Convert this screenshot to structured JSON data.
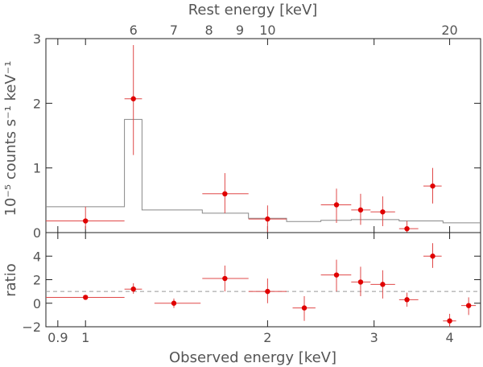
{
  "chart_data": {
    "type": "scatter",
    "x_scale": "log",
    "xlim": [
      0.86,
      4.5
    ],
    "xlabel": "Observed energy [keV]",
    "x_ticks": [
      {
        "value": 0.9,
        "label": "0.9"
      },
      {
        "value": 1,
        "label": "1"
      },
      {
        "value": 2,
        "label": "2"
      },
      {
        "value": 3,
        "label": "3"
      },
      {
        "value": 4,
        "label": "4"
      }
    ],
    "top_axis": {
      "label": "Rest energy [keV]",
      "x_ticks": [
        {
          "value": 1.2,
          "label": "6"
        },
        {
          "value": 1.4,
          "label": "7"
        },
        {
          "value": 1.6,
          "label": "8"
        },
        {
          "value": 1.8,
          "label": "9"
        },
        {
          "value": 2.0,
          "label": "10"
        },
        {
          "value": 4.0,
          "label": "20"
        }
      ]
    },
    "panels": [
      {
        "name": "spectrum",
        "ylabel": "10⁻⁵ counts s⁻¹ keV⁻¹",
        "ylim": [
          0,
          3
        ],
        "y_ticks": [
          {
            "value": 0,
            "label": "0"
          },
          {
            "value": 1,
            "label": "1"
          },
          {
            "value": 2,
            "label": "2"
          },
          {
            "value": 3,
            "label": "3"
          }
        ],
        "points": [
          {
            "x": 1.0,
            "xlo": 0.86,
            "xhi": 1.16,
            "y": 0.18,
            "ylo": 0.05,
            "yhi": 0.4
          },
          {
            "x": 1.2,
            "xlo": 1.16,
            "xhi": 1.24,
            "y": 2.07,
            "ylo": 1.2,
            "yhi": 2.9
          },
          {
            "x": 1.7,
            "xlo": 1.56,
            "xhi": 1.86,
            "y": 0.6,
            "ylo": 0.3,
            "yhi": 0.92
          },
          {
            "x": 2.0,
            "xlo": 1.86,
            "xhi": 2.15,
            "y": 0.21,
            "ylo": 0.0,
            "yhi": 0.42
          },
          {
            "x": 2.6,
            "xlo": 2.45,
            "xhi": 2.75,
            "y": 0.43,
            "ylo": 0.15,
            "yhi": 0.68
          },
          {
            "x": 2.85,
            "xlo": 2.75,
            "xhi": 2.96,
            "y": 0.35,
            "ylo": 0.12,
            "yhi": 0.6
          },
          {
            "x": 3.1,
            "xlo": 2.96,
            "xhi": 3.25,
            "y": 0.32,
            "ylo": 0.1,
            "yhi": 0.56
          },
          {
            "x": 3.4,
            "xlo": 3.3,
            "xhi": 3.55,
            "y": 0.06,
            "ylo": 0.0,
            "yhi": 0.18
          },
          {
            "x": 3.75,
            "xlo": 3.62,
            "xhi": 3.88,
            "y": 0.72,
            "ylo": 0.45,
            "yhi": 1.0
          }
        ],
        "model_steps": [
          {
            "x0": 0.86,
            "x1": 1.16,
            "y": 0.4
          },
          {
            "x0": 1.16,
            "x1": 1.24,
            "y": 1.75
          },
          {
            "x0": 1.24,
            "x1": 1.56,
            "y": 0.35
          },
          {
            "x0": 1.56,
            "x1": 1.86,
            "y": 0.3
          },
          {
            "x0": 1.86,
            "x1": 2.15,
            "y": 0.22
          },
          {
            "x0": 2.15,
            "x1": 2.45,
            "y": 0.17
          },
          {
            "x0": 2.45,
            "x1": 2.75,
            "y": 0.19
          },
          {
            "x0": 2.75,
            "x1": 3.3,
            "y": 0.2
          },
          {
            "x0": 3.3,
            "x1": 3.9,
            "y": 0.18
          },
          {
            "x0": 3.9,
            "x1": 4.5,
            "y": 0.15
          }
        ]
      },
      {
        "name": "ratio",
        "ylabel": "ratio",
        "ylim": [
          -2,
          6
        ],
        "reference_line": 1,
        "y_ticks": [
          {
            "value": -2,
            "label": "−2"
          },
          {
            "value": 0,
            "label": "0"
          },
          {
            "value": 2,
            "label": "2"
          },
          {
            "value": 4,
            "label": "4"
          }
        ],
        "points": [
          {
            "x": 1.0,
            "xlo": 0.86,
            "xhi": 1.16,
            "y": 0.5,
            "ylo": 0.5,
            "yhi": 0.5
          },
          {
            "x": 1.2,
            "xlo": 1.16,
            "xhi": 1.24,
            "y": 1.2,
            "ylo": 0.8,
            "yhi": 1.7
          },
          {
            "x": 1.4,
            "xlo": 1.3,
            "xhi": 1.55,
            "y": 0.0,
            "ylo": -0.4,
            "yhi": 0.4
          },
          {
            "x": 1.7,
            "xlo": 1.56,
            "xhi": 1.86,
            "y": 2.1,
            "ylo": 1.0,
            "yhi": 3.2
          },
          {
            "x": 2.0,
            "xlo": 1.86,
            "xhi": 2.15,
            "y": 1.0,
            "ylo": 0.0,
            "yhi": 2.1
          },
          {
            "x": 2.3,
            "xlo": 2.2,
            "xhi": 2.4,
            "y": -0.4,
            "ylo": -1.5,
            "yhi": 0.6
          },
          {
            "x": 2.6,
            "xlo": 2.45,
            "xhi": 2.75,
            "y": 2.4,
            "ylo": 1.0,
            "yhi": 3.7
          },
          {
            "x": 2.85,
            "xlo": 2.75,
            "xhi": 2.96,
            "y": 1.8,
            "ylo": 0.6,
            "yhi": 3.1
          },
          {
            "x": 3.1,
            "xlo": 2.96,
            "xhi": 3.25,
            "y": 1.6,
            "ylo": 0.4,
            "yhi": 2.8
          },
          {
            "x": 3.4,
            "xlo": 3.3,
            "xhi": 3.55,
            "y": 0.3,
            "ylo": -0.3,
            "yhi": 0.9
          },
          {
            "x": 3.75,
            "xlo": 3.62,
            "xhi": 3.88,
            "y": 4.0,
            "ylo": 3.0,
            "yhi": 5.1
          },
          {
            "x": 4.0,
            "xlo": 3.9,
            "xhi": 4.1,
            "y": -1.5,
            "ylo": -2.0,
            "yhi": -0.9
          },
          {
            "x": 4.3,
            "xlo": 4.18,
            "xhi": 4.42,
            "y": -0.2,
            "ylo": -1.0,
            "yhi": 0.5
          }
        ]
      }
    ],
    "colors": {
      "points": "#e00000",
      "errorbars": "#e04848",
      "model": "#888888",
      "axes": "#222222",
      "labels": "#555555"
    }
  }
}
